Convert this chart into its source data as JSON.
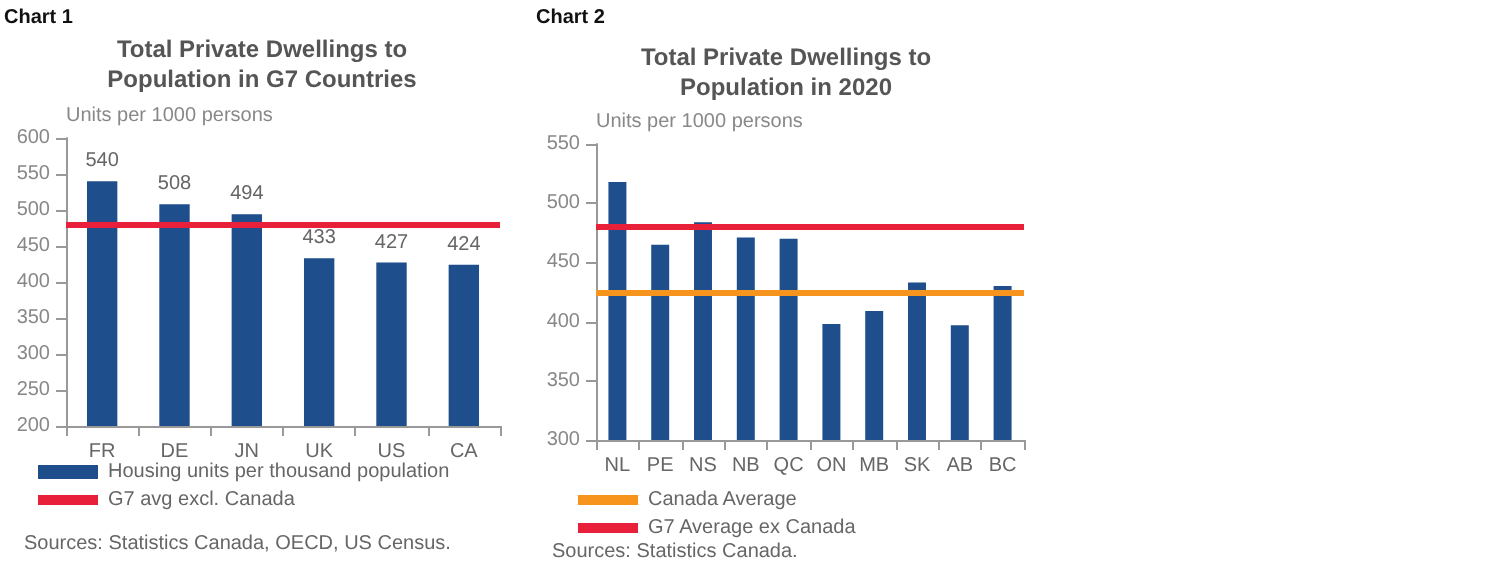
{
  "chart_data": [
    {
      "type": "bar",
      "title": "Total Private Dwellings to Population in G7 Countries",
      "ylabel": "Units per 1000 persons",
      "annotations": [
        "Chart 1",
        "Sources: Statistics Canada, OECD, US Census."
      ],
      "categories": [
        "FR",
        "DE",
        "JN",
        "UK",
        "US",
        "CA"
      ],
      "series": [
        {
          "name": "Housing units per thousand population",
          "color": "#1f4e8c",
          "values": [
            540,
            508,
            494,
            433,
            427,
            424
          ]
        }
      ],
      "data_labels": true,
      "ref_lines": [
        {
          "axis": "y",
          "value": 480,
          "label": "G7 avg excl. Canada",
          "color": "#e8203a"
        }
      ],
      "ylim": [
        200,
        600
      ],
      "yticks": [
        200,
        250,
        300,
        350,
        400,
        450,
        500,
        550,
        600
      ],
      "grid": false,
      "legend": "bottom"
    },
    {
      "type": "bar",
      "title": "Total Private Dwellings to Population in 2020",
      "ylabel": "Units per 1000 persons",
      "annotations": [
        "Chart 2",
        "Sources: Statistics Canada."
      ],
      "categories": [
        "NL",
        "PE",
        "NS",
        "NB",
        "QC",
        "ON",
        "MB",
        "SK",
        "AB",
        "BC"
      ],
      "series": [
        {
          "color": "#1f4e8c",
          "values": [
            518,
            465,
            484,
            471,
            470,
            398,
            409,
            433,
            397,
            430
          ]
        }
      ],
      "ref_lines": [
        {
          "axis": "y",
          "value": 425,
          "label": "Canada Average",
          "color": "#f7941d"
        },
        {
          "axis": "y",
          "value": 480,
          "label": "G7 Average ex Canada",
          "color": "#e8203a"
        }
      ],
      "ylim": [
        300,
        550
      ],
      "yticks": [
        300,
        350,
        400,
        450,
        500,
        550
      ],
      "grid": false,
      "legend": "bottom"
    }
  ]
}
